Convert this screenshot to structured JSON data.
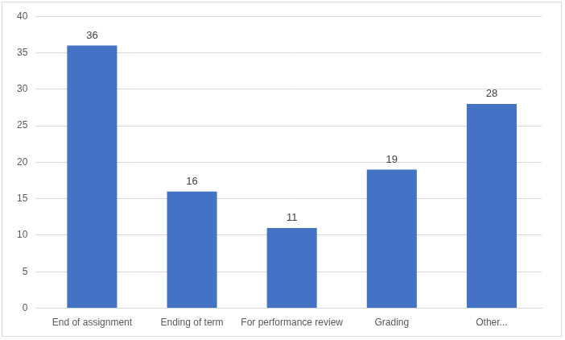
{
  "chart_data": {
    "type": "bar",
    "categories": [
      "End of assignment",
      "Ending of term",
      "For performance review",
      "Grading",
      "Other..."
    ],
    "values": [
      36,
      16,
      11,
      19,
      28
    ],
    "color": "#4472c4",
    "ylim": [
      0,
      40
    ],
    "yticks": [
      0,
      5,
      10,
      15,
      20,
      25,
      30,
      35,
      40
    ],
    "grid": true,
    "data_labels": true
  }
}
